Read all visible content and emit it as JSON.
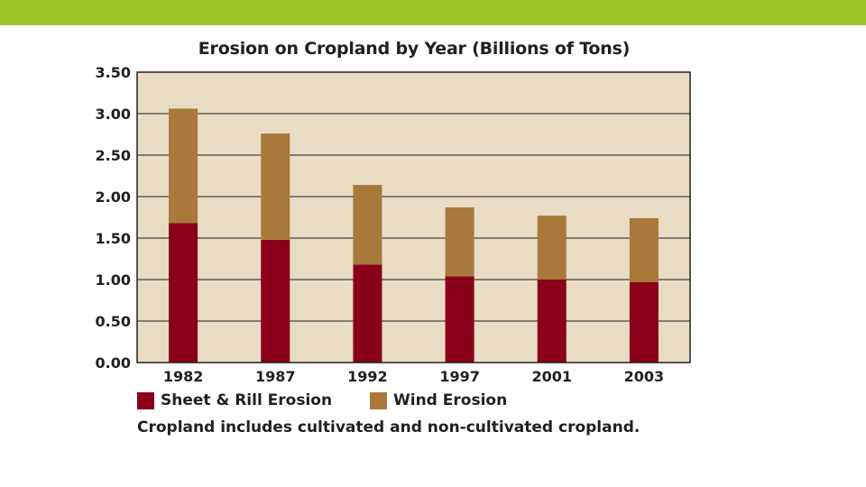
{
  "colors": {
    "top_band": "#9dc52a",
    "plot_background": "#e8dcc3",
    "sheet_rill": "#8a0018",
    "wind": "#a8793a",
    "grid": "#444444"
  },
  "chart_data": {
    "type": "bar",
    "stacked": true,
    "title": "Erosion on Cropland by Year (Billions of Tons)",
    "xlabel": "",
    "ylabel": "",
    "categories": [
      "1982",
      "1987",
      "1992",
      "1997",
      "2001",
      "2003"
    ],
    "series": [
      {
        "name": "Sheet & Rill Erosion",
        "color": "#8a0018",
        "values": [
          1.68,
          1.48,
          1.18,
          1.04,
          1.0,
          0.97
        ]
      },
      {
        "name": "Wind Erosion",
        "color": "#a8793a",
        "values": [
          1.38,
          1.28,
          0.96,
          0.83,
          0.77,
          0.77
        ]
      }
    ],
    "ylim": [
      0,
      3.5
    ],
    "yticks": [
      "0.00",
      "0.50",
      "1.00",
      "1.50",
      "2.00",
      "2.50",
      "3.00",
      "3.50"
    ],
    "grid": true,
    "legend_position": "bottom-left",
    "note": "Cropland includes cultivated and non-cultivated cropland."
  }
}
